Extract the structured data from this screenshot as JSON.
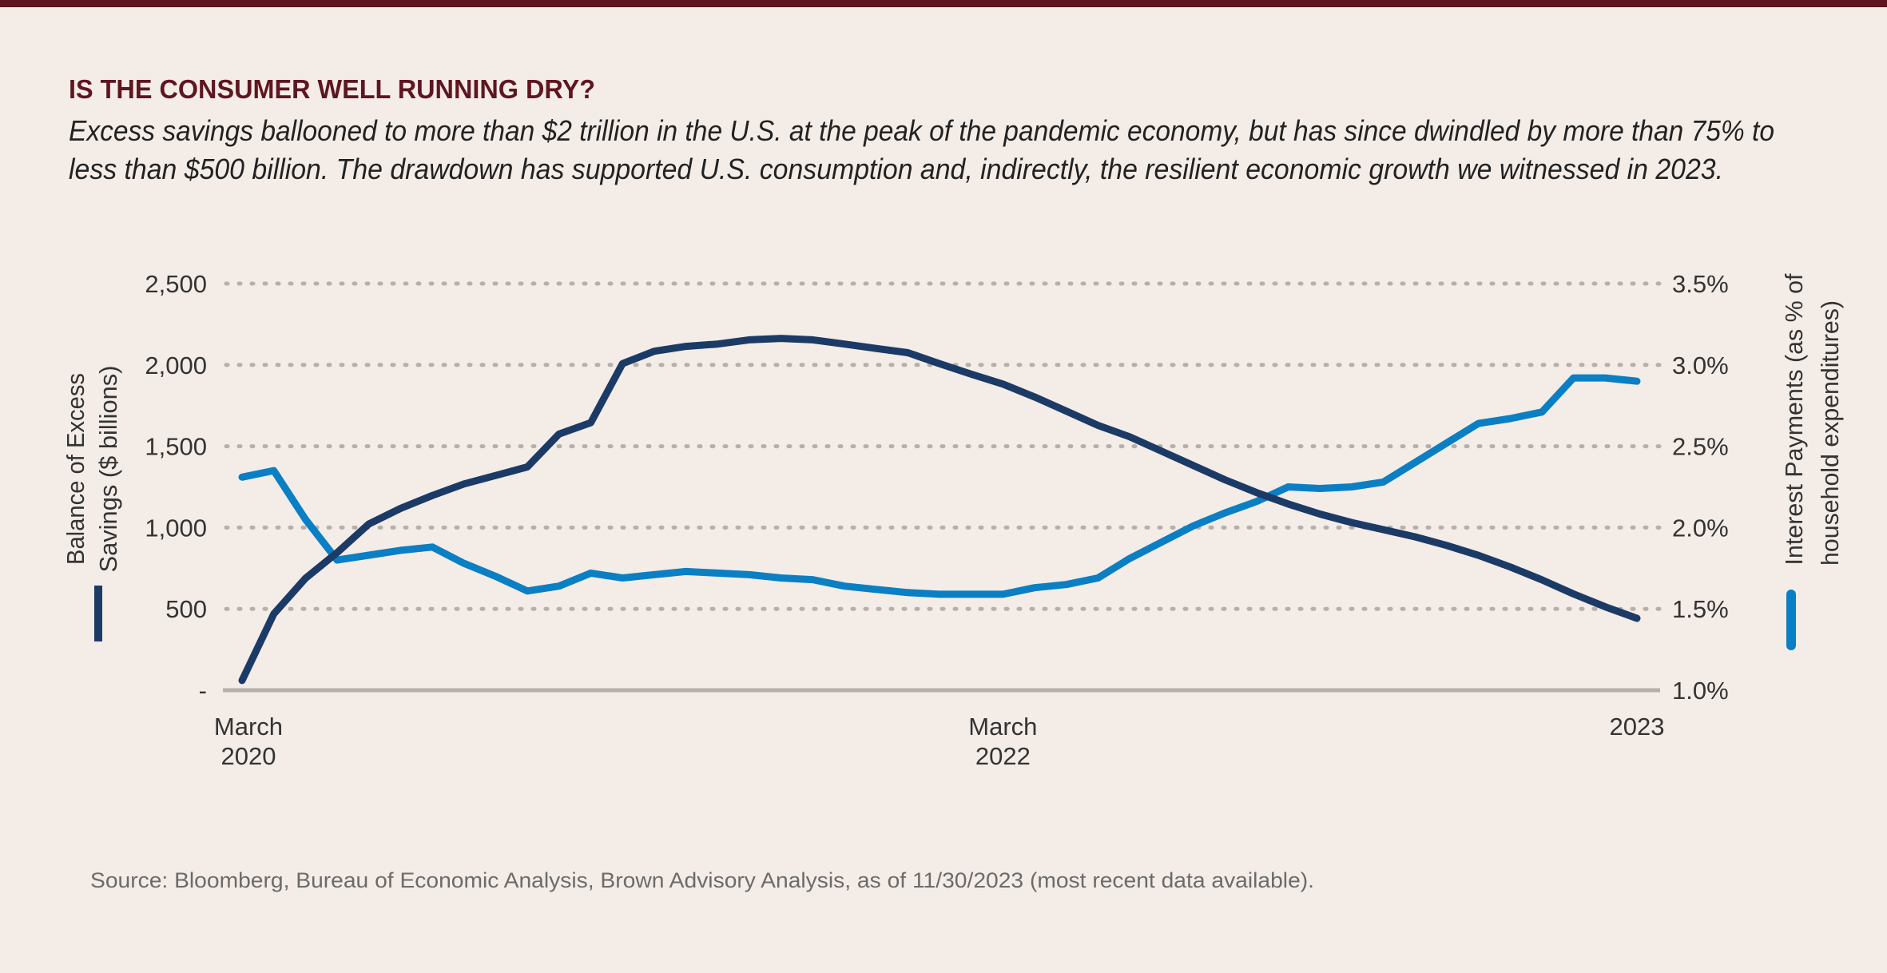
{
  "header": {
    "title": "IS THE CONSUMER WELL RUNNING DRY?",
    "subtitle_lines": [
      "Excess savings ballooned to more than $2 trillion in the U.S. at the peak of the pandemic economy, but has since dwindled by more than 75% to",
      "less than $500 billion. The drawdown has supported U.S. consumption and, indirectly, the resilient economic growth we witnessed in 2023."
    ]
  },
  "source": "Source: Bloomberg, Bureau of Economic Analysis, Brown Advisory Analysis, as of 11/30/2023 (most recent data available).",
  "colors": {
    "background": "#f4ece7",
    "top_rule": "#5e1620",
    "title": "#5e1620",
    "savings": "#1c3a66",
    "interest": "#0a7fc4",
    "grid": "#b5b0ab"
  },
  "chart_data": {
    "type": "line",
    "grid": "horizontal dotted",
    "x": [
      "2020-03",
      "2020-04",
      "2020-05",
      "2020-06",
      "2020-07",
      "2020-08",
      "2020-09",
      "2020-10",
      "2020-11",
      "2020-12",
      "2021-01",
      "2021-02",
      "2021-03",
      "2021-04",
      "2021-05",
      "2021-06",
      "2021-07",
      "2021-08",
      "2021-09",
      "2021-10",
      "2021-11",
      "2021-12",
      "2022-01",
      "2022-02",
      "2022-03",
      "2022-04",
      "2022-05",
      "2022-06",
      "2022-07",
      "2022-08",
      "2022-09",
      "2022-10",
      "2022-11",
      "2022-12",
      "2023-01",
      "2023-02",
      "2023-03",
      "2023-04",
      "2023-05",
      "2023-06",
      "2023-07",
      "2023-08",
      "2023-09",
      "2023-10",
      "2023-11"
    ],
    "x_tick_labels": [
      {
        "lines": [
          "March",
          "2020"
        ],
        "index": 0
      },
      {
        "lines": [
          "March",
          "2022"
        ],
        "index": 24
      },
      {
        "lines": [
          "2023"
        ],
        "index": 44
      }
    ],
    "left_axis": {
      "label_lines": [
        "Balance of Excess",
        "Savings ($ billions)"
      ],
      "ylim": [
        0,
        2500
      ],
      "ticks": [
        0,
        500,
        1000,
        1500,
        2000,
        2500
      ],
      "tick_labels": [
        "-",
        "500",
        "1,000",
        "1,500",
        "2,000",
        "2,500"
      ]
    },
    "right_axis": {
      "label_lines": [
        "Interest Payments (as % of",
        "household expenditures)"
      ],
      "ylim": [
        1.0,
        3.5
      ],
      "ticks": [
        1.0,
        1.5,
        2.0,
        2.5,
        3.0,
        3.5
      ],
      "tick_labels": [
        "1.0%",
        "1.5%",
        "2.0%",
        "2.5%",
        "3.0%",
        "3.5%"
      ]
    },
    "series": [
      {
        "axis": "left",
        "color": "#1c3a66",
        "values": [
          60,
          469,
          688,
          846,
          1022,
          1118,
          1197,
          1268,
          1320,
          1373,
          1575,
          1645,
          2008,
          2084,
          2114,
          2128,
          2154,
          2163,
          2154,
          2128,
          2101,
          2075,
          2008,
          1943,
          1882,
          1803,
          1716,
          1628,
          1558,
          1470,
          1382,
          1294,
          1215,
          1145,
          1083,
          1031,
          987,
          943,
          890,
          829,
          758,
          679,
          592,
          513,
          442
        ]
      },
      {
        "axis": "right",
        "color": "#0a7fc4",
        "values": [
          2.31,
          2.35,
          2.05,
          1.8,
          1.83,
          1.86,
          1.88,
          1.78,
          1.7,
          1.61,
          1.64,
          1.72,
          1.69,
          1.71,
          1.73,
          1.72,
          1.71,
          1.69,
          1.68,
          1.64,
          1.62,
          1.6,
          1.59,
          1.59,
          1.59,
          1.63,
          1.65,
          1.69,
          1.81,
          1.91,
          2.01,
          2.09,
          2.16,
          2.25,
          2.24,
          2.25,
          2.28,
          2.4,
          2.52,
          2.64,
          2.67,
          2.71,
          2.92,
          2.92,
          2.9
        ]
      }
    ]
  }
}
